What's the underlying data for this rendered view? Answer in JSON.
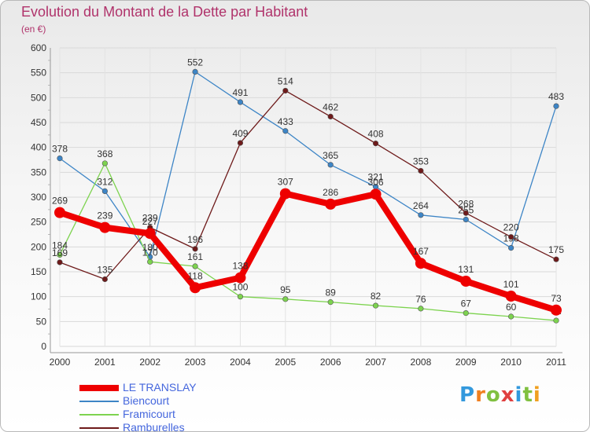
{
  "page": {
    "title": "Evolution du Montant de la Dette par Habitant",
    "unit": "(en €)",
    "logo": "Proxiti",
    "logo_colors": [
      "#3399dd",
      "#f08020",
      "#80c040",
      "#e04040",
      "#3399dd",
      "#80c040",
      "#f0a020"
    ]
  },
  "chart_data": {
    "type": "line",
    "title": "Evolution du Montant de la Dette par Habitant",
    "subtitle": "(en €)",
    "x": [
      "2000",
      "2001",
      "2002",
      "2003",
      "2004",
      "2005",
      "2006",
      "2007",
      "2008",
      "2009",
      "2010",
      "2011"
    ],
    "ylim": [
      0,
      600
    ],
    "yticks": [
      0,
      50,
      100,
      150,
      200,
      250,
      300,
      350,
      400,
      450,
      500,
      550,
      600
    ],
    "grid": true,
    "legend_position": "bottom-left",
    "series": [
      {
        "name": "LE TRANSLAY",
        "color": "#ee0000",
        "emphasis": true,
        "values": [
          269,
          239,
          227,
          118,
          138,
          307,
          286,
          306,
          167,
          131,
          101,
          73
        ]
      },
      {
        "name": "Biencourt",
        "color": "#3d85c6",
        "values": [
          378,
          312,
          180,
          552,
          491,
          433,
          365,
          321,
          264,
          255,
          198,
          483
        ]
      },
      {
        "name": "Framicourt",
        "color": "#7dd34f",
        "values": [
          184,
          368,
          170,
          161,
          100,
          95,
          89,
          82,
          76,
          67,
          60,
          52
        ]
      },
      {
        "name": "Ramburelles",
        "color": "#6e1a1a",
        "values": [
          169,
          135,
          239,
          196,
          409,
          514,
          462,
          408,
          353,
          268,
          220,
          175
        ]
      }
    ]
  }
}
